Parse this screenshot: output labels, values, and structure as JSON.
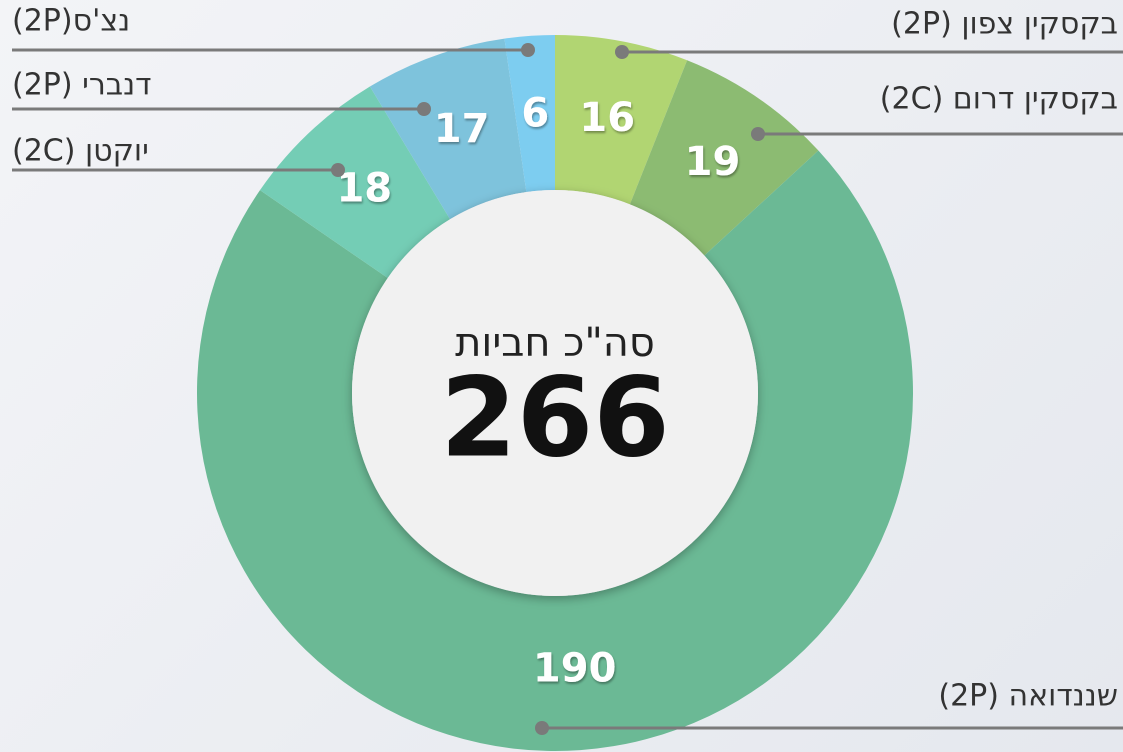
{
  "chart_data": {
    "type": "donut",
    "center_title": "סה\"כ חביות",
    "total": 266,
    "categories": [
      "בקסקין צפון (2P)",
      "בקסקין דרום (2C)",
      "שננדואה (2P)",
      "יוקטן (2C)",
      "דנברי (2P)",
      "נצ'ס(2P)"
    ],
    "values": [
      16,
      19,
      190,
      18,
      17,
      6
    ],
    "colors": [
      "#b1d572",
      "#8cbb72",
      "#6bb995",
      "#74cdb5",
      "#7ec3dc",
      "#7dcdf0"
    ]
  }
}
